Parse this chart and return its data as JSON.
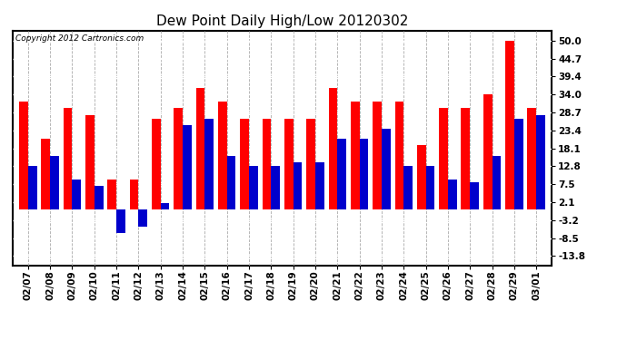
{
  "title": "Dew Point Daily High/Low 20120302",
  "copyright": "Copyright 2012 Cartronics.com",
  "dates": [
    "02/07",
    "02/08",
    "02/09",
    "02/10",
    "02/11",
    "02/12",
    "02/13",
    "02/14",
    "02/15",
    "02/16",
    "02/17",
    "02/18",
    "02/19",
    "02/20",
    "02/21",
    "02/22",
    "02/23",
    "02/24",
    "02/25",
    "02/26",
    "02/27",
    "02/28",
    "02/29",
    "03/01"
  ],
  "highs": [
    32,
    21,
    30,
    28,
    9,
    9,
    27,
    30,
    36,
    32,
    27,
    27,
    27,
    27,
    36,
    32,
    32,
    32,
    19,
    30,
    30,
    34,
    50,
    30
  ],
  "lows": [
    13,
    16,
    9,
    7,
    -7,
    -5,
    2,
    25,
    27,
    16,
    13,
    13,
    14,
    14,
    21,
    21,
    24,
    13,
    13,
    9,
    8,
    16,
    27,
    28
  ],
  "high_color": "#ff0000",
  "low_color": "#0000cc",
  "bg_color": "#ffffff",
  "plot_bg_color": "#ffffff",
  "ytick_values": [
    -13.8,
    -8.5,
    -3.2,
    2.1,
    7.5,
    12.8,
    18.1,
    23.4,
    28.7,
    34.0,
    39.4,
    44.7,
    50.0
  ],
  "ytick_labels": [
    "-13.8",
    "-8.5",
    "-3.2",
    "2.1",
    "7.5",
    "12.8",
    "18.1",
    "23.4",
    "28.7",
    "34.0",
    "39.4",
    "44.7",
    "50.0"
  ],
  "ylim_min": -16.5,
  "ylim_max": 53,
  "bar_width": 0.4,
  "title_fontsize": 11,
  "tick_fontsize": 7.5,
  "copyright_fontsize": 6.5
}
